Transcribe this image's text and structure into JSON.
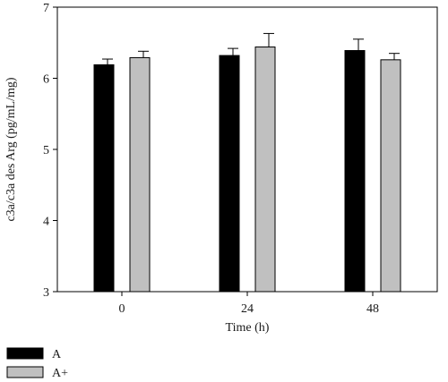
{
  "chart_data": {
    "type": "bar",
    "categories": [
      "0",
      "24",
      "48"
    ],
    "series": [
      {
        "name": "A",
        "values": [
          6.19,
          6.32,
          6.39
        ],
        "errors": [
          0.08,
          0.1,
          0.16
        ],
        "color": "#000000"
      },
      {
        "name": "A+",
        "values": [
          6.29,
          6.44,
          6.26
        ],
        "errors": [
          0.09,
          0.19,
          0.09
        ],
        "color": "#c0c0c0"
      }
    ],
    "xlabel": "Time (h)",
    "ylabel": "c3a/c3a des Arg (pg/mL/mg)",
    "ylim": [
      3,
      7
    ],
    "yticks": [
      "3",
      "4",
      "5",
      "6",
      "7"
    ],
    "grid": false,
    "legend_position": "bottom-left"
  }
}
